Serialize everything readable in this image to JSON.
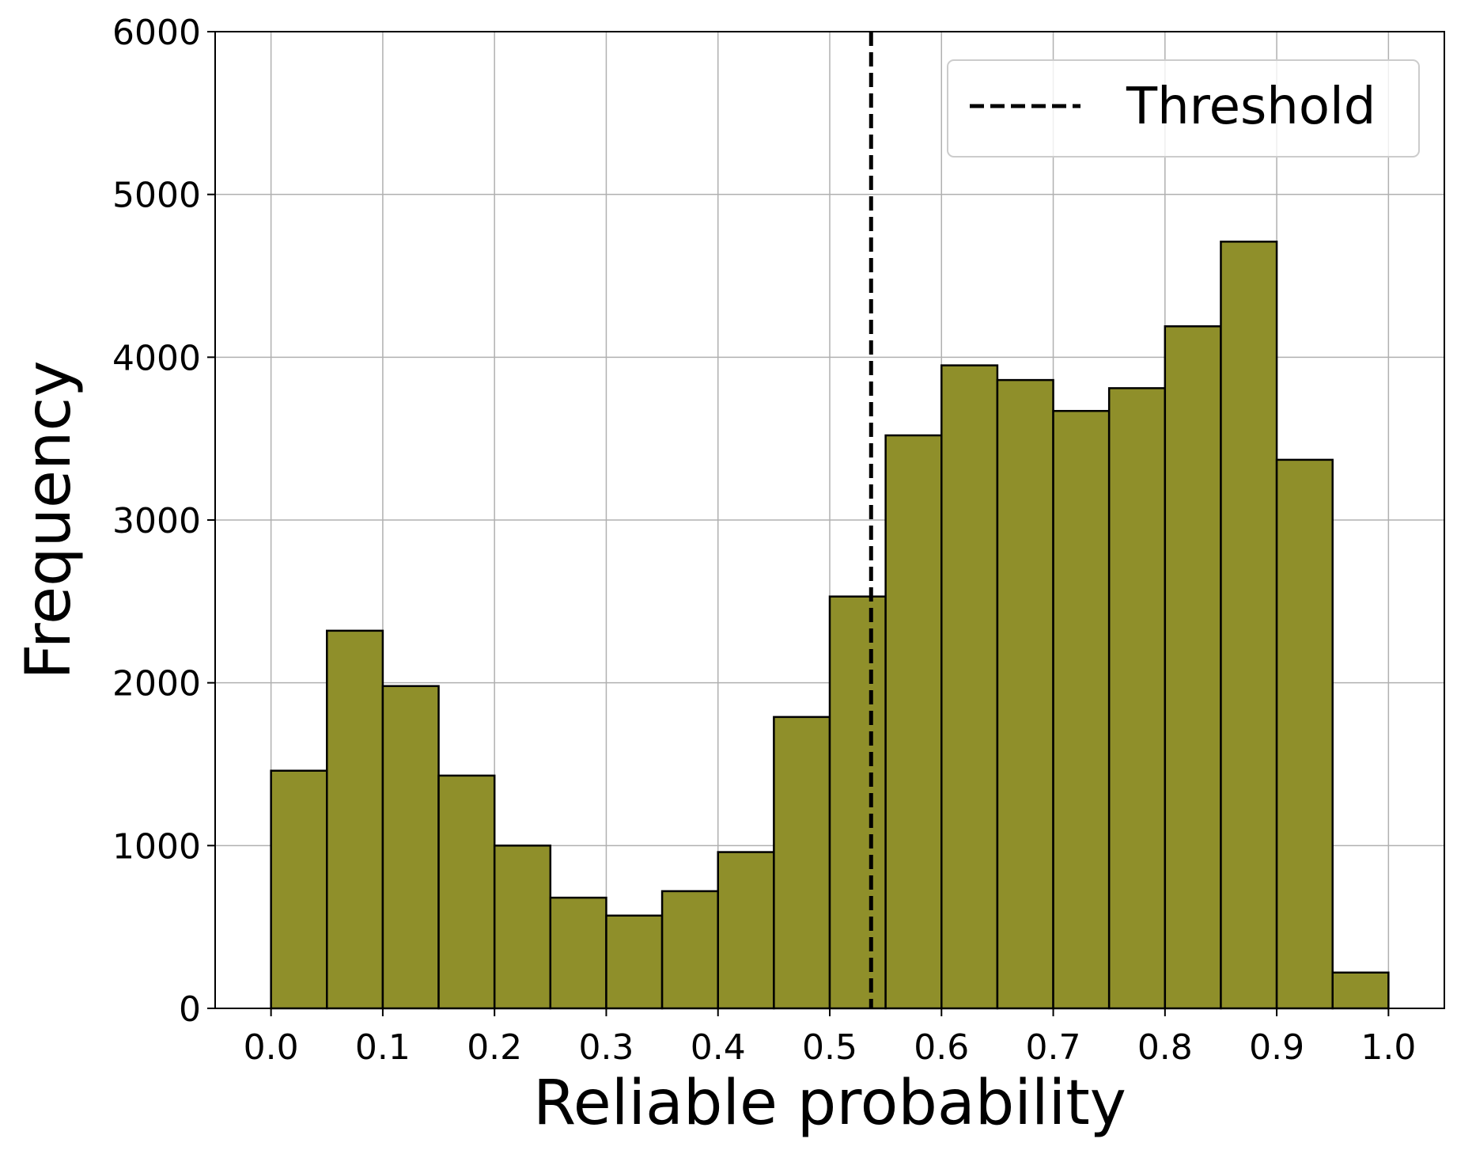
{
  "chart_data": {
    "type": "bar",
    "subtype": "histogram",
    "xlabel": "Reliable probability",
    "ylabel": "Frequency",
    "xlim": [
      -0.05,
      1.05
    ],
    "ylim": [
      0,
      6000
    ],
    "grid": true,
    "bin_width": 0.05,
    "bins": [
      {
        "start": 0.0,
        "end": 0.05,
        "value": 1460
      },
      {
        "start": 0.05,
        "end": 0.1,
        "value": 2320
      },
      {
        "start": 0.1,
        "end": 0.15,
        "value": 1980
      },
      {
        "start": 0.15,
        "end": 0.2,
        "value": 1430
      },
      {
        "start": 0.2,
        "end": 0.25,
        "value": 1000
      },
      {
        "start": 0.25,
        "end": 0.3,
        "value": 680
      },
      {
        "start": 0.3,
        "end": 0.35,
        "value": 570
      },
      {
        "start": 0.35,
        "end": 0.4,
        "value": 720
      },
      {
        "start": 0.4,
        "end": 0.45,
        "value": 960
      },
      {
        "start": 0.45,
        "end": 0.5,
        "value": 1790
      },
      {
        "start": 0.5,
        "end": 0.55,
        "value": 2530
      },
      {
        "start": 0.55,
        "end": 0.6,
        "value": 3520
      },
      {
        "start": 0.6,
        "end": 0.65,
        "value": 3950
      },
      {
        "start": 0.65,
        "end": 0.7,
        "value": 3860
      },
      {
        "start": 0.7,
        "end": 0.75,
        "value": 3670
      },
      {
        "start": 0.75,
        "end": 0.8,
        "value": 3810
      },
      {
        "start": 0.8,
        "end": 0.85,
        "value": 4190
      },
      {
        "start": 0.85,
        "end": 0.9,
        "value": 4710
      },
      {
        "start": 0.9,
        "end": 0.95,
        "value": 3370
      },
      {
        "start": 0.95,
        "end": 1.0,
        "value": 220
      }
    ],
    "bar_color": "#8f8f2a",
    "bar_edge_color": "#000000",
    "x_ticks": [
      0.0,
      0.1,
      0.2,
      0.3,
      0.4,
      0.5,
      0.6,
      0.7,
      0.8,
      0.9,
      1.0
    ],
    "x_tick_labels": [
      "0.0",
      "0.1",
      "0.2",
      "0.3",
      "0.4",
      "0.5",
      "0.6",
      "0.7",
      "0.8",
      "0.9",
      "1.0"
    ],
    "y_ticks": [
      0,
      1000,
      2000,
      3000,
      4000,
      5000,
      6000
    ],
    "y_tick_labels": [
      "0",
      "1000",
      "2000",
      "3000",
      "4000",
      "5000",
      "6000"
    ],
    "threshold": {
      "value": 0.537,
      "label": "Threshold",
      "style": "dashed",
      "color": "#000000"
    },
    "legend": {
      "position": "top-right",
      "entries": [
        "Threshold"
      ]
    }
  }
}
